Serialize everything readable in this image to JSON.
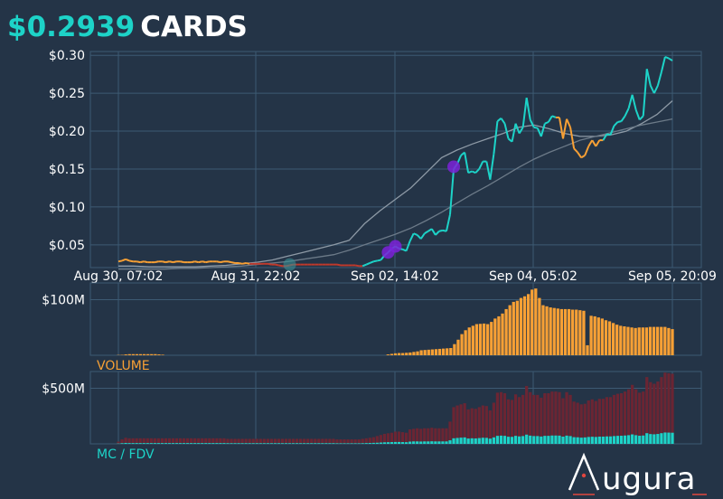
{
  "header": {
    "price": "$0.2939",
    "ticker": "CARDS"
  },
  "colors": {
    "background": "#243447",
    "grid": "#3d5a73",
    "price_up": "#1dd3c8",
    "price_down": "#f7a035",
    "price_flat_red": "#c0392b",
    "ma_fast": "#8e9aa6",
    "ma_slow": "#6c7a88",
    "volume_bar": "#f7a035",
    "mc_bar": "#1dd3c8",
    "fdv_bar": "#6b2533",
    "marker": "#7b22d9",
    "volume_label": "#f7a035",
    "mcfdv_label": "#1dd3c8"
  },
  "brand": {
    "name": "Augura",
    "logo_text": "ugura"
  },
  "chart_data": [
    {
      "type": "line",
      "panel": "price",
      "x_tick_labels": [
        "Aug 30, 07:02",
        "Aug 31, 22:02",
        "Sep 02, 14:02",
        "Sep 04, 05:02",
        "Sep 05, 20:09"
      ],
      "y_tick_labels": [
        "$0.30",
        "$0.25",
        "$0.20",
        "$0.15",
        "$0.10",
        "$0.05"
      ],
      "ylim": [
        0.02,
        0.305
      ],
      "grid": true,
      "series": [
        {
          "role": "price",
          "values": [
            0.028,
            0.029,
            0.031,
            0.029,
            0.028,
            0.028,
            0.027,
            0.028,
            0.027,
            0.027,
            0.027,
            0.028,
            0.028,
            0.027,
            0.028,
            0.027,
            0.028,
            0.028,
            0.027,
            0.027,
            0.027,
            0.028,
            0.027,
            0.028,
            0.027,
            0.028,
            0.028,
            0.028,
            0.027,
            0.028,
            0.028,
            0.027,
            0.026,
            0.026,
            0.025,
            0.026,
            0.025,
            0.025,
            0.025,
            0.025,
            0.025,
            0.025,
            0.024,
            0.024,
            0.023,
            0.022,
            0.022,
            0.023,
            0.024,
            0.024,
            0.024,
            0.024,
            0.024,
            0.024,
            0.024,
            0.024,
            0.024,
            0.024,
            0.024,
            0.024,
            0.024,
            0.023,
            0.023,
            0.023,
            0.023,
            0.023,
            0.022,
            0.022,
            0.024,
            0.026,
            0.028,
            0.029,
            0.03,
            0.036,
            0.04,
            0.045,
            0.048,
            0.045,
            0.044,
            0.042,
            0.055,
            0.065,
            0.063,
            0.058,
            0.065,
            0.068,
            0.071,
            0.063,
            0.068,
            0.069,
            0.068,
            0.09,
            0.15,
            0.157,
            0.168,
            0.172,
            0.145,
            0.147,
            0.145,
            0.15,
            0.16,
            0.16,
            0.136,
            0.17,
            0.213,
            0.217,
            0.21,
            0.19,
            0.186,
            0.21,
            0.197,
            0.205,
            0.244,
            0.215,
            0.205,
            0.204,
            0.193,
            0.21,
            0.212,
            0.22,
            0.218,
            0.218,
            0.19,
            0.216,
            0.205,
            0.177,
            0.172,
            0.165,
            0.168,
            0.18,
            0.188,
            0.18,
            0.188,
            0.188,
            0.196,
            0.195,
            0.207,
            0.212,
            0.213,
            0.22,
            0.23,
            0.248,
            0.228,
            0.215,
            0.22,
            0.282,
            0.26,
            0.25,
            0.26,
            0.278,
            0.298,
            0.296,
            0.293
          ]
        },
        {
          "role": "ma_fast",
          "values": [
            0.022,
            0.022,
            0.021,
            0.021,
            0.021,
            0.021,
            0.022,
            0.023,
            0.025,
            0.027,
            0.03,
            0.035,
            0.04,
            0.045,
            0.05,
            0.056,
            0.078,
            0.095,
            0.11,
            0.125,
            0.145,
            0.165,
            0.175,
            0.183,
            0.19,
            0.197,
            0.205,
            0.208,
            0.203,
            0.197,
            0.193,
            0.193,
            0.195,
            0.2,
            0.21,
            0.222,
            0.24
          ]
        },
        {
          "role": "ma_slow",
          "values": [
            0.018,
            0.018,
            0.018,
            0.018,
            0.019,
            0.019,
            0.02,
            0.021,
            0.022,
            0.024,
            0.026,
            0.028,
            0.031,
            0.034,
            0.037,
            0.043,
            0.05,
            0.057,
            0.064,
            0.072,
            0.082,
            0.093,
            0.105,
            0.117,
            0.128,
            0.14,
            0.152,
            0.163,
            0.172,
            0.18,
            0.188,
            0.193,
            0.198,
            0.203,
            0.208,
            0.212,
            0.216
          ]
        }
      ],
      "markers": [
        {
          "x_index": 47,
          "y": 0.024,
          "color": "teal"
        },
        {
          "x_index": 74,
          "y": 0.04,
          "color": "purple"
        },
        {
          "x_index": 76,
          "y": 0.048,
          "color": "purple"
        },
        {
          "x_index": 92,
          "y": 0.153,
          "color": "purple"
        }
      ]
    },
    {
      "type": "bar",
      "panel": "volume",
      "label": "VOLUME",
      "y_tick_labels": [
        "$100M"
      ],
      "ylim": [
        0,
        130
      ],
      "grid": true,
      "values": [
        0.5,
        0.7,
        1.5,
        2.0,
        2.0,
        2.0,
        2.0,
        2.0,
        2.0,
        2.0,
        2.0,
        1.5,
        1.0,
        0,
        0,
        0,
        0,
        0,
        0,
        0,
        0,
        0,
        0,
        0,
        0,
        0,
        0,
        0,
        0,
        0,
        0,
        0,
        0,
        0,
        0,
        0,
        0,
        0,
        0,
        0,
        0,
        0,
        0,
        0,
        0,
        0,
        0,
        0,
        0,
        0,
        0,
        0,
        0,
        0,
        0,
        0,
        0,
        0,
        0,
        0,
        0,
        0,
        0,
        0,
        0,
        0,
        0,
        0,
        0,
        0,
        0,
        0,
        0,
        1.5,
        2.5,
        3.5,
        4.0,
        4.0,
        4.5,
        5.0,
        6.0,
        7.0,
        9.0,
        9.5,
        10.0,
        10.5,
        11.0,
        11.5,
        12.0,
        12.5,
        13.0,
        20.0,
        28.0,
        38.0,
        45.0,
        50.0,
        53.0,
        56.0,
        56.5,
        57.0,
        56.0,
        60.0,
        66.0,
        70.0,
        75.0,
        83.0,
        90.0,
        96.0,
        98.0,
        103.0,
        106.0,
        110.0,
        118.0,
        120.0,
        103.0,
        90.0,
        88.0,
        86.0,
        85.0,
        84.0,
        83.0,
        83.0,
        83.0,
        82.0,
        82.0,
        81.0,
        80.0,
        18.0,
        71.0,
        70.0,
        68.0,
        66.0,
        63.0,
        61.0,
        58.0,
        55.0,
        53.0,
        52.0,
        51.0,
        50.0,
        49.0,
        50.0,
        50.0,
        50.0,
        51.0,
        51.0,
        51.0,
        51.0,
        51.0,
        49.0,
        47.0
      ]
    },
    {
      "type": "bar",
      "panel": "mc_fdv",
      "label": "MC / FDV",
      "y_tick_labels": [
        "$500M"
      ],
      "ylim": [
        0,
        650
      ],
      "grid": true,
      "series": [
        {
          "role": "fdv",
          "values": [
            20,
            40,
            55,
            50,
            50,
            50,
            50,
            50,
            50,
            50,
            50,
            50,
            50,
            50,
            50,
            50,
            50,
            50,
            50,
            50,
            50,
            50,
            50,
            50,
            50,
            50,
            50,
            50,
            50,
            50,
            45,
            45,
            45,
            45,
            45,
            45,
            45,
            45,
            45,
            45,
            45,
            45,
            45,
            45,
            45,
            45,
            45,
            45,
            45,
            45,
            45,
            45,
            45,
            45,
            45,
            45,
            45,
            45,
            45,
            45,
            40,
            40,
            40,
            40,
            40,
            40,
            40,
            45,
            50,
            55,
            60,
            70,
            80,
            90,
            95,
            100,
            110,
            110,
            105,
            100,
            130,
            135,
            140,
            135,
            140,
            140,
            145,
            140,
            140,
            140,
            140,
            200,
            330,
            345,
            355,
            365,
            310,
            320,
            315,
            330,
            345,
            340,
            300,
            370,
            460,
            465,
            455,
            400,
            395,
            445,
            420,
            440,
            520,
            465,
            440,
            440,
            415,
            455,
            455,
            470,
            470,
            465,
            410,
            465,
            440,
            380,
            370,
            355,
            360,
            390,
            400,
            385,
            405,
            405,
            420,
            420,
            440,
            450,
            455,
            470,
            490,
            530,
            490,
            460,
            470,
            600,
            555,
            540,
            560,
            600,
            640,
            635,
            630
          ]
        },
        {
          "role": "mc",
          "values": [
            3,
            6,
            8,
            7,
            7,
            7,
            7,
            7,
            7,
            7,
            7,
            7,
            7,
            7,
            7,
            7,
            7,
            7,
            7,
            7,
            7,
            7,
            7,
            7,
            7,
            7,
            7,
            7,
            7,
            7,
            6,
            6,
            6,
            6,
            6,
            6,
            6,
            6,
            6,
            6,
            6,
            6,
            6,
            6,
            6,
            6,
            6,
            6,
            6,
            6,
            6,
            6,
            6,
            6,
            6,
            6,
            6,
            6,
            6,
            6,
            5,
            5,
            5,
            5,
            5,
            5,
            5,
            6,
            7,
            8,
            9,
            10,
            12,
            14,
            15,
            16,
            17,
            17,
            16,
            15,
            20,
            22,
            22,
            21,
            22,
            22,
            23,
            22,
            22,
            22,
            22,
            32,
            50,
            53,
            56,
            58,
            48,
            50,
            49,
            52,
            55,
            54,
            47,
            58,
            72,
            74,
            72,
            64,
            63,
            72,
            67,
            70,
            83,
            74,
            70,
            70,
            66,
            72,
            72,
            75,
            75,
            74,
            65,
            74,
            70,
            60,
            59,
            56,
            58,
            62,
            64,
            62,
            65,
            65,
            67,
            67,
            70,
            72,
            73,
            75,
            78,
            85,
            78,
            73,
            75,
            96,
            88,
            86,
            89,
            96,
            102,
            101,
            100
          ]
        }
      ]
    }
  ]
}
